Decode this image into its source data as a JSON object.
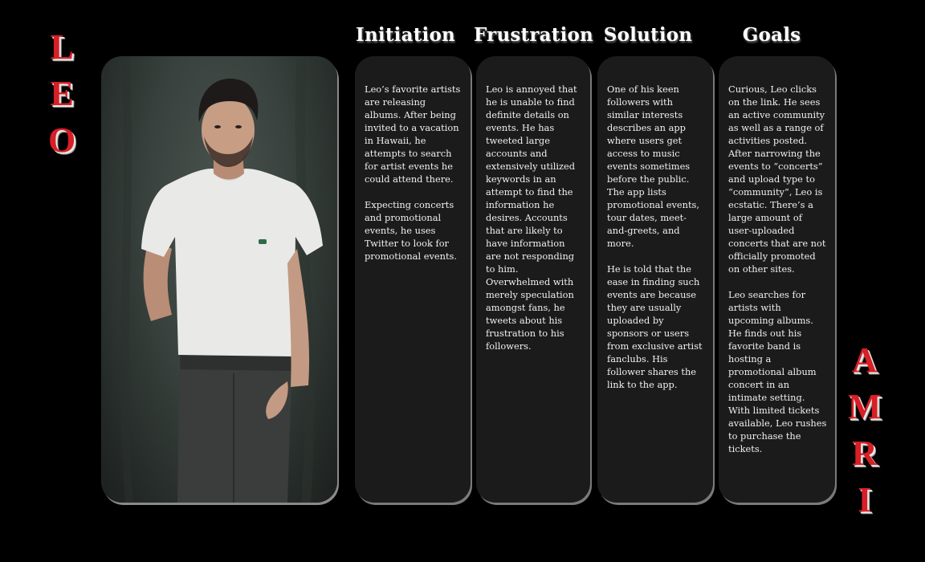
{
  "persona": {
    "first_name": [
      "L",
      "E",
      "O"
    ],
    "last_name": [
      "A",
      "M",
      "R",
      "I"
    ],
    "photo_alt": "Portrait of Leo"
  },
  "columns": [
    {
      "title": "Initiation",
      "paragraphs": [
        "Leo’s favorite artists are releasing albums. After being invited to a vacation in Hawaii, he attempts to search for artist events he could attend there.",
        "Expecting concerts and promotional events, he uses Twitter to look for promotional events."
      ]
    },
    {
      "title": "Frustration",
      "paragraphs": [
        "Leo is annoyed that he is unable to find definite details on events. He has tweeted large accounts and extensively utilized keywords in an attempt to find the information he desires. Accounts that are likely to have information are not responding to him. Overwhelmed with merely speculation amongst fans, he tweets about his frustration to his followers."
      ]
    },
    {
      "title": "Solution",
      "paragraphs": [
        "One of his keen followers with similar interests describes an app where users get access to music events sometimes before the public. The app lists promotional events, tour dates, meet-and-greets, and more.",
        "He is told that the ease in finding such events are because they are usually uploaded by sponsors or users from exclusive artist fanclubs. His follower shares the link to the app."
      ]
    },
    {
      "title": "Goals",
      "paragraphs": [
        "Curious, Leo clicks on the link. He sees an active community as well as a range of activities posted. After narrowing the events to “concerts” and upload type to “community”, Leo is ecstatic. There’s a large amount of user-uploaded concerts that are not officially promoted on other sites.",
        "Leo searches for artists with upcoming albums. He finds out his favorite band is hosting a promotional album concert in an intimate setting. With limited tickets available, Leo rushes to purchase the tickets."
      ]
    }
  ]
}
